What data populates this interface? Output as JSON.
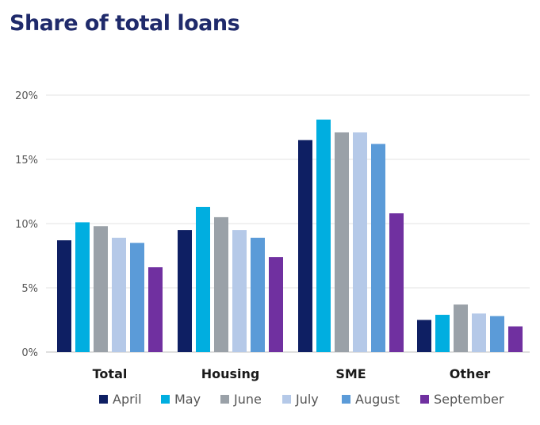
{
  "chart_data": {
    "type": "bar",
    "title": "Share of total loans",
    "xlabel": "",
    "ylabel": "",
    "categories": [
      "Total",
      "Housing",
      "SME",
      "Other"
    ],
    "y_ticks": [
      "0%",
      "5%",
      "10%",
      "15%",
      "20%"
    ],
    "ylim": [
      0,
      20
    ],
    "grid": true,
    "legend_position": "bottom",
    "series": [
      {
        "name": "April",
        "color": "#0e1f63",
        "values": [
          8.7,
          9.5,
          16.5,
          2.5
        ]
      },
      {
        "name": "May",
        "color": "#00aee0",
        "values": [
          10.1,
          11.3,
          18.1,
          2.9
        ]
      },
      {
        "name": "June",
        "color": "#9aa1a8",
        "values": [
          9.8,
          10.5,
          17.1,
          3.7
        ]
      },
      {
        "name": "July",
        "color": "#b5c9e8",
        "values": [
          8.9,
          9.5,
          17.1,
          3.0
        ]
      },
      {
        "name": "August",
        "color": "#5b9bd8",
        "values": [
          8.5,
          8.9,
          16.2,
          2.8
        ]
      },
      {
        "name": "September",
        "color": "#7030a0",
        "values": [
          6.6,
          7.4,
          10.8,
          2.0
        ]
      }
    ]
  }
}
